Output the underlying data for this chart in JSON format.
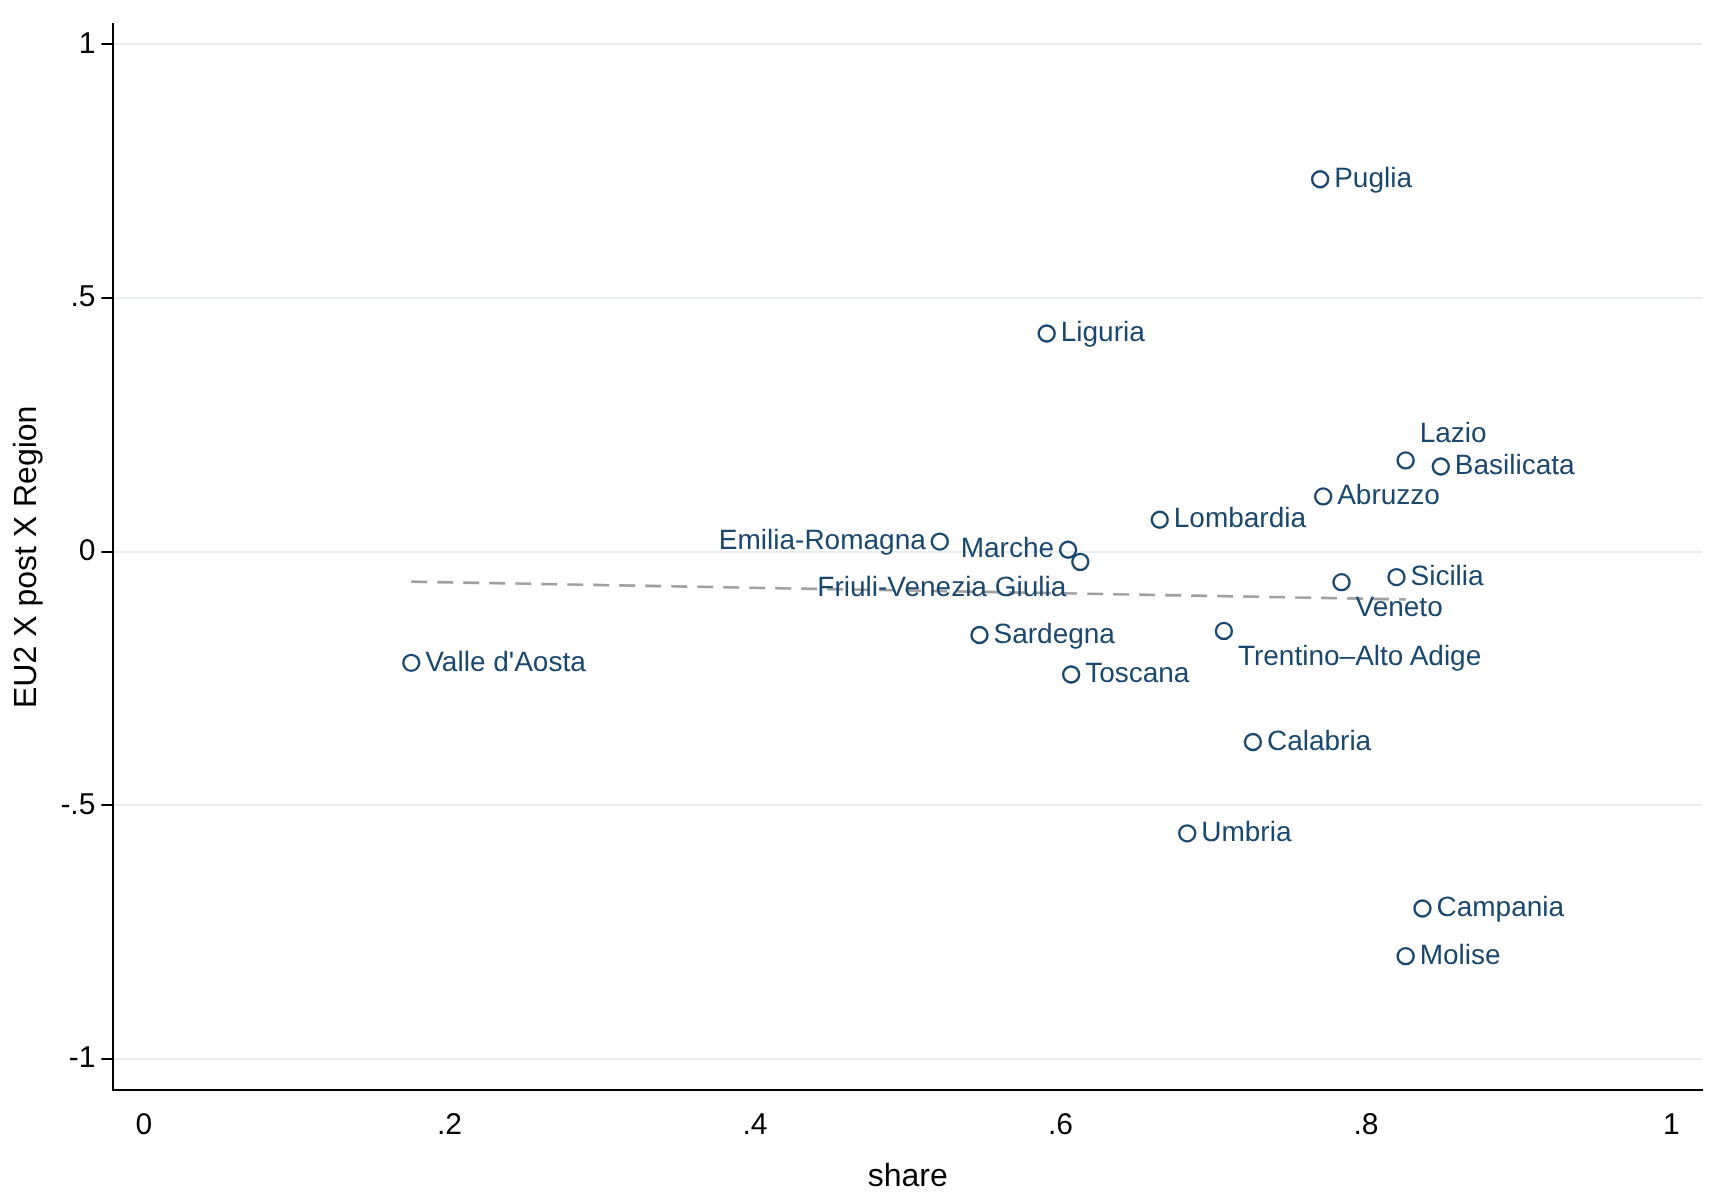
{
  "chart_data": {
    "type": "scatter",
    "xlabel": "share",
    "ylabel": "EU2 X post X Region",
    "xlim": [
      -0.02,
      1.02
    ],
    "ylim": [
      -1.06,
      1.04
    ],
    "xticks": [
      0,
      {
        "value": 0.2,
        "label": ".2"
      },
      {
        "value": 0.4,
        "label": ".4"
      },
      {
        "value": 0.6,
        "label": ".6"
      },
      {
        "value": 0.8,
        "label": ".8"
      },
      1
    ],
    "yticks": [
      {
        "value": -1,
        "label": "-1"
      },
      {
        "value": -0.5,
        "label": "-.5"
      },
      0,
      {
        "value": 0.5,
        "label": ".5"
      },
      1
    ],
    "grid": "y",
    "legend": false,
    "marker": "circle",
    "series": [
      {
        "type": "scatter",
        "color": "#1a476f",
        "x": [
          0.77,
          0.591,
          0.826,
          0.849,
          0.772,
          0.665,
          0.521,
          0.605,
          0.613,
          0.784,
          0.82,
          0.547,
          0.707,
          0.607,
          0.175,
          0.726,
          0.683,
          0.837,
          0.826
        ],
        "values": [
          0.734,
          0.43,
          0.18,
          0.168,
          0.109,
          0.063,
          0.02,
          0.004,
          -0.02,
          -0.06,
          -0.05,
          -0.164,
          -0.156,
          -0.242,
          -0.219,
          -0.375,
          -0.555,
          -0.703,
          -0.797
        ]
      },
      {
        "type": "line",
        "color": "#a0a0a0",
        "line_style": "dashed",
        "marker": "none",
        "x": [
          0.175,
          0.826
        ],
        "values": [
          -0.059,
          -0.094
        ]
      }
    ],
    "annotations": [
      {
        "text": "Puglia",
        "x": 0.77,
        "y": 0.734
      },
      {
        "text": "Liguria",
        "x": 0.591,
        "y": 0.43
      },
      {
        "text": "Lazio",
        "x": 0.826,
        "y": 0.18
      },
      {
        "text": "Basilicata",
        "x": 0.849,
        "y": 0.168
      },
      {
        "text": "Abruzzo",
        "x": 0.772,
        "y": 0.109
      },
      {
        "text": "Lombardia",
        "x": 0.665,
        "y": 0.063
      },
      {
        "text": "Emilia-Romagna",
        "x": 0.521,
        "y": 0.02
      },
      {
        "text": "Marche",
        "x": 0.605,
        "y": 0.004
      },
      {
        "text": "Friuli-Venezia Giulia",
        "x": 0.613,
        "y": -0.02
      },
      {
        "text": "Veneto",
        "x": 0.784,
        "y": -0.06
      },
      {
        "text": "Sicilia",
        "x": 0.82,
        "y": -0.05
      },
      {
        "text": "Sardegna",
        "x": 0.547,
        "y": -0.164
      },
      {
        "text": "Trentino–Alto Adige",
        "x": 0.707,
        "y": -0.156
      },
      {
        "text": "Toscana",
        "x": 0.607,
        "y": -0.242
      },
      {
        "text": "Valle d'Aosta",
        "x": 0.175,
        "y": -0.219
      },
      {
        "text": "Calabria",
        "x": 0.726,
        "y": -0.375
      },
      {
        "text": "Umbria",
        "x": 0.683,
        "y": -0.555
      },
      {
        "text": "Campania",
        "x": 0.837,
        "y": -0.703
      },
      {
        "text": "Molise",
        "x": 0.826,
        "y": -0.797
      }
    ]
  }
}
